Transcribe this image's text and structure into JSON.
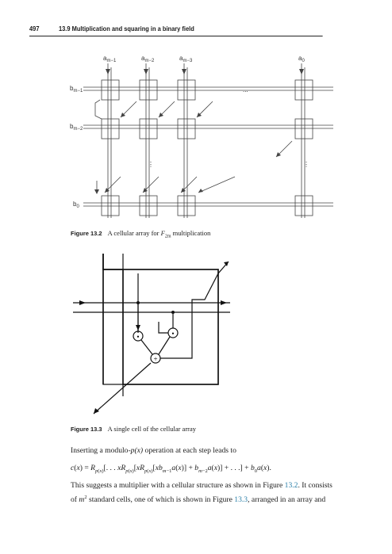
{
  "header": {
    "page_number": "497",
    "section_title": "13.9 Multiplication and squaring in a binary field"
  },
  "figure1": {
    "label": "Figure 13.2",
    "caption": "A cellular array for F2m multiplication",
    "caption_prefix": "A cellular array for ",
    "caption_suffix": " multiplication",
    "caption_math_base": "F",
    "caption_math_sub": "2m",
    "col_labels": [
      "a_{m−1}",
      "a_{m−2}",
      "a_{m−3}",
      "a_0"
    ],
    "col_label_bases": [
      "a",
      "a",
      "a",
      "a"
    ],
    "col_label_subs": [
      "m−1",
      "m−2",
      "m−3",
      "0"
    ],
    "row_label_bases": [
      "b",
      "b",
      "b"
    ],
    "row_label_subs": [
      "m−1",
      "m−2",
      "0"
    ],
    "ellipsis_h": "...",
    "ellipsis_v": "⋮"
  },
  "figure2": {
    "label": "Figure 13.3",
    "caption": "A single cell of the cellular array",
    "mult_symbol": "•",
    "add_symbol": "+"
  },
  "body": {
    "p1_prefix": "Inserting a modulo-",
    "p1_math": "p(x)",
    "p1_suffix": " operation at each step leads to",
    "equation": "c(x) = R_{p(x)}[. . . x R_{p(x)}[x R_{p(x)}[x b_{m−1} a(x)] + b_{m−2} a(x)] + . . .] + b_0 a(x).",
    "p2_line1_prefix": "This suggests a multiplier with a cellular structure as shown in Figure ",
    "p2_link1": "13.2",
    "p2_line1_suffix": ". It consists",
    "p2_line2_prefix": "of ",
    "p2_line2_math": "m",
    "p2_line2_sup": "2",
    "p2_line2_mid": " standard cells, one of which is shown in Figure ",
    "p2_link2": "13.3",
    "p2_line2_suffix": ", arranged in an array and"
  }
}
